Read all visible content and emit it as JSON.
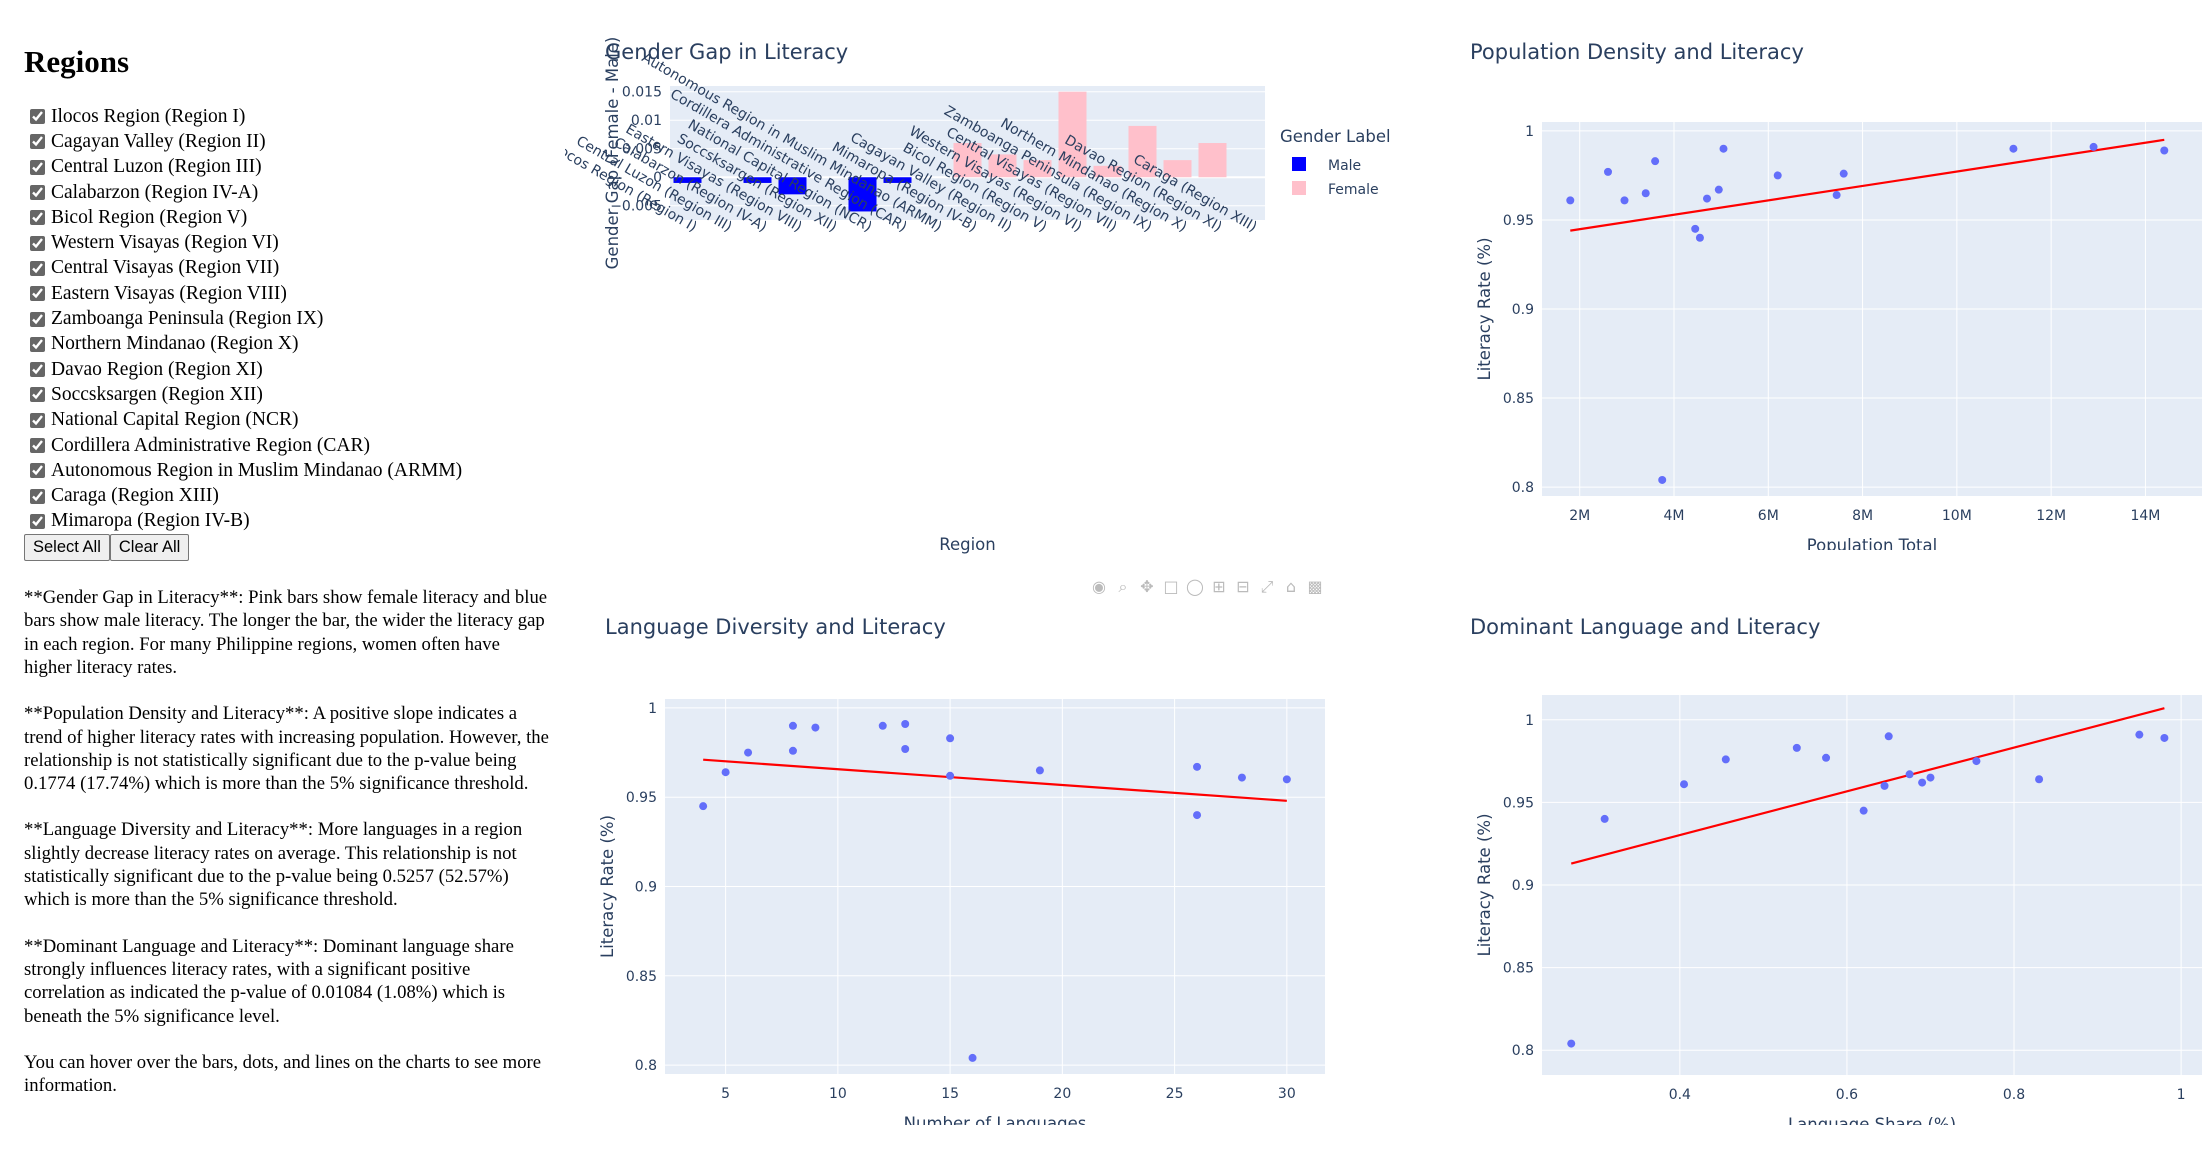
{
  "sidebar": {
    "title": "Regions",
    "regions": [
      "Ilocos Region (Region I)",
      "Cagayan Valley (Region II)",
      "Central Luzon (Region III)",
      "Calabarzon (Region IV-A)",
      "Bicol Region (Region V)",
      "Western Visayas (Region VI)",
      "Central Visayas (Region VII)",
      "Eastern Visayas (Region VIII)",
      "Zamboanga Peninsula (Region IX)",
      "Northern Mindanao (Region X)",
      "Davao Region (Region XI)",
      "Soccsksargen (Region XII)",
      "National Capital Region (NCR)",
      "Cordillera Administrative Region (CAR)",
      "Autonomous Region in Muslim Mindanao (ARMM)",
      "Caraga (Region XIII)",
      "Mimaropa (Region IV-B)"
    ],
    "select_all": "Select All",
    "clear_all": "Clear All"
  },
  "descriptions": [
    "**Gender Gap in Literacy**: Pink bars show female literacy and blue bars show male literacy. The longer the bar, the wider the literacy gap in each region. For many Philippine regions, women often have higher literacy rates.",
    "**Population Density and Literacy**: A positive slope indicates a trend of higher literacy rates with increasing population. However, the relationship is not statistically significant due to the p-value being 0.1774 (17.74%) which is more than the 5% significance threshold.",
    "**Language Diversity and Literacy**: More languages in a region slightly decrease literacy rates on average. This relationship is not statistically significant due to the p-value being 0.5257 (52.57%) which is more than the 5% significance threshold.",
    "**Dominant Language and Literacy**: Dominant language share strongly influences literacy rates, with a significant positive correlation as indicated the p-value of 0.01084 (1.08%) which is beneath the 5% significance level.",
    "You can hover over the bars, dots, and lines on the charts to see more information."
  ],
  "colors": {
    "male": "#0000ff",
    "female": "#ffc0cb",
    "point": "#636efa",
    "trend": "#ff0000",
    "plot_bg": "#e5ecf6",
    "text": "#2a3f5f"
  },
  "chart_data": [
    {
      "type": "bar",
      "title": "Gender Gap in Literacy",
      "xlabel": "Region",
      "ylabel": "Gender Gap (Female - Male)",
      "ylim": [
        -0.0075,
        0.016
      ],
      "yticks": [
        -0.005,
        0,
        0.005,
        0.01,
        0.015
      ],
      "ytick_labels": [
        "−0.005",
        "0",
        "0.005",
        "0.01",
        "0.015"
      ],
      "legend_title": "Gender Label",
      "legend": [
        "Male",
        "Female"
      ],
      "categories": [
        "Ilocos Region (Region I)",
        "Central Luzon (Region III)",
        "Calabarzon (Region IV-A)",
        "Eastern Visayas (Region VIII)",
        "Soccsksargen (Region XII)",
        "National Capital Region (NCR)",
        "Cordillera Administrative Region (CAR)",
        "Autonomous Region in Muslim Mindanao (ARMM)",
        "Mimaropa (Region IV-B)",
        "Cagayan Valley (Region II)",
        "Bicol Region (Region V)",
        "Western Visayas (Region VI)",
        "Central Visayas (Region VII)",
        "Zamboanga Peninsula (Region IX)",
        "Northern Mindanao (Region X)",
        "Davao Region (Region XI)",
        "Caraga (Region XIII)"
      ],
      "values": [
        -0.001,
        0,
        -0.001,
        -0.003,
        0,
        -0.006,
        -0.001,
        0,
        0.006,
        0.004,
        0.003,
        0.015,
        0.002,
        0.009,
        0.003,
        0.006,
        0
      ],
      "genders": [
        "Male",
        "Male",
        "Male",
        "Male",
        "Male",
        "Male",
        "Male",
        "Female",
        "Female",
        "Female",
        "Female",
        "Female",
        "Female",
        "Female",
        "Female",
        "Female",
        "Female"
      ]
    },
    {
      "type": "scatter",
      "title": "Population Density and Literacy",
      "xlabel": "Population Total",
      "ylabel": "Literacy Rate (%)",
      "xlim": [
        1200000,
        15200000
      ],
      "ylim": [
        0.795,
        1.005
      ],
      "xticks": [
        2000000,
        4000000,
        6000000,
        8000000,
        10000000,
        12000000,
        14000000
      ],
      "xtick_labels": [
        "2M",
        "4M",
        "6M",
        "8M",
        "10M",
        "12M",
        "14M"
      ],
      "yticks": [
        0.8,
        0.85,
        0.9,
        0.95,
        1
      ],
      "ytick_labels": [
        "0.8",
        "0.85",
        "0.9",
        "0.95",
        "1"
      ],
      "x": [
        1800000,
        2600000,
        2950000,
        3400000,
        3600000,
        3750000,
        4450000,
        4550000,
        4700000,
        4950000,
        5050000,
        6200000,
        7450000,
        7600000,
        11200000,
        12900000,
        14400000
      ],
      "y": [
        0.961,
        0.977,
        0.961,
        0.965,
        0.983,
        0.804,
        0.945,
        0.94,
        0.962,
        0.967,
        0.99,
        0.975,
        0.964,
        0.976,
        0.99,
        0.991,
        0.989
      ],
      "trend": {
        "x": [
          1800000,
          14400000
        ],
        "y": [
          0.944,
          0.995
        ]
      }
    },
    {
      "type": "scatter",
      "title": "Language Diversity and Literacy",
      "xlabel": "Number of Languages",
      "ylabel": "Literacy Rate (%)",
      "xlim": [
        2.3,
        31.7
      ],
      "ylim": [
        0.795,
        1.005
      ],
      "xticks": [
        5,
        10,
        15,
        20,
        25,
        30
      ],
      "xtick_labels": [
        "5",
        "10",
        "15",
        "20",
        "25",
        "30"
      ],
      "yticks": [
        0.8,
        0.85,
        0.9,
        0.95,
        1
      ],
      "ytick_labels": [
        "0.8",
        "0.85",
        "0.9",
        "0.95",
        "1"
      ],
      "x": [
        4,
        5,
        6,
        8,
        8,
        9,
        12,
        13,
        13,
        15,
        15,
        16,
        19,
        26,
        26,
        28,
        30
      ],
      "y": [
        0.945,
        0.964,
        0.975,
        0.976,
        0.99,
        0.989,
        0.99,
        0.991,
        0.977,
        0.983,
        0.962,
        0.804,
        0.965,
        0.967,
        0.94,
        0.961,
        0.96
      ],
      "trend": {
        "x": [
          4,
          30
        ],
        "y": [
          0.971,
          0.948
        ]
      }
    },
    {
      "type": "scatter",
      "title": "Dominant Language and Literacy",
      "xlabel": "Language Share (%)",
      "ylabel": "Literacy Rate (%)",
      "xlim": [
        0.235,
        1.025
      ],
      "ylim": [
        0.785,
        1.015
      ],
      "xticks": [
        0.4,
        0.6,
        0.8,
        1
      ],
      "xtick_labels": [
        "0.4",
        "0.6",
        "0.8",
        "1"
      ],
      "yticks": [
        0.8,
        0.85,
        0.9,
        0.95,
        1
      ],
      "ytick_labels": [
        "0.8",
        "0.85",
        "0.9",
        "0.95",
        "1"
      ],
      "x": [
        0.27,
        0.31,
        0.405,
        0.455,
        0.54,
        0.575,
        0.62,
        0.645,
        0.65,
        0.675,
        0.69,
        0.7,
        0.755,
        0.83,
        0.95,
        0.98
      ],
      "y": [
        0.804,
        0.94,
        0.961,
        0.976,
        0.983,
        0.977,
        0.945,
        0.96,
        0.99,
        0.967,
        0.962,
        0.965,
        0.975,
        0.964,
        0.991,
        0.989
      ],
      "trend": {
        "x": [
          0.27,
          0.98
        ],
        "y": [
          0.913,
          1.007
        ]
      }
    }
  ]
}
